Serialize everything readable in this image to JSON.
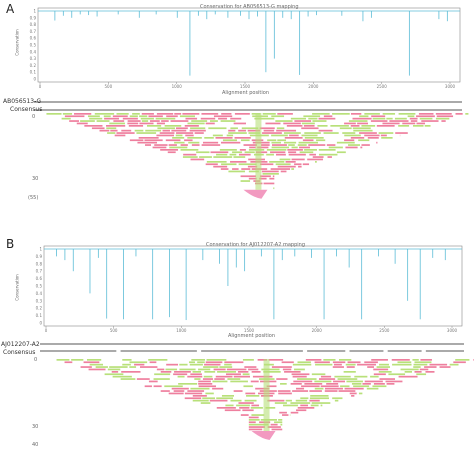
{
  "panels": [
    {
      "letter": "A",
      "title": "Conservation for AB056513-G mapping",
      "y_axis_label": "Conservation",
      "y_ticks": [
        "1",
        "0.9",
        "0.8",
        "0.7",
        "0.6",
        "0.5",
        "0.4",
        "0.3",
        "0.2",
        "0.1",
        "0"
      ],
      "x_ticks": [
        "0",
        "500",
        "1000",
        "1500",
        "2000",
        "2500",
        "3000"
      ],
      "x_axis_label": "Alignment position",
      "reference_name": "AB056513-G",
      "consensus_label": "Consensus",
      "coverage_ticks": [
        "0",
        "30",
        "(55)"
      ],
      "dips": [
        [
          0.04,
          0.86
        ],
        [
          0.06,
          0.93
        ],
        [
          0.08,
          0.9
        ],
        [
          0.1,
          0.95
        ],
        [
          0.12,
          0.94
        ],
        [
          0.14,
          0.92
        ],
        [
          0.19,
          0.95
        ],
        [
          0.24,
          0.9
        ],
        [
          0.28,
          0.95
        ],
        [
          0.33,
          0.9
        ],
        [
          0.36,
          0.05
        ],
        [
          0.38,
          0.93
        ],
        [
          0.4,
          0.88
        ],
        [
          0.42,
          0.95
        ],
        [
          0.45,
          0.9
        ],
        [
          0.48,
          0.93
        ],
        [
          0.5,
          0.88
        ],
        [
          0.52,
          0.92
        ],
        [
          0.54,
          0.1
        ],
        [
          0.56,
          0.3
        ],
        [
          0.58,
          0.9
        ],
        [
          0.6,
          0.88
        ],
        [
          0.62,
          0.06
        ],
        [
          0.64,
          0.92
        ],
        [
          0.66,
          0.94
        ],
        [
          0.72,
          0.93
        ],
        [
          0.77,
          0.85
        ],
        [
          0.79,
          0.9
        ],
        [
          0.88,
          0.05
        ],
        [
          0.95,
          0.88
        ],
        [
          0.97,
          0.85
        ]
      ],
      "colors": {
        "line": "#5bbcd6",
        "forward": "#ee7f9e",
        "reverse": "#b8e07a",
        "tail": "#f29ac0"
      }
    },
    {
      "letter": "B",
      "title": "Conservation for AJ012207-A2 mapping",
      "y_axis_label": "Conservation",
      "y_ticks": [
        "1",
        "0.9",
        "0.8",
        "0.7",
        "0.6",
        "0.5",
        "0.4",
        "0.3",
        "0.2",
        "0.1",
        "0"
      ],
      "x_ticks": [
        "0",
        "500",
        "1000",
        "1500",
        "2000",
        "2500",
        "3000"
      ],
      "x_axis_label": "Alignment position",
      "reference_name": "AJ012207-A2",
      "consensus_label": "Consensus",
      "coverage_ticks": [
        "0",
        "30",
        "40"
      ],
      "dips": [
        [
          0.03,
          0.9
        ],
        [
          0.05,
          0.85
        ],
        [
          0.07,
          0.7
        ],
        [
          0.11,
          0.4
        ],
        [
          0.13,
          0.88
        ],
        [
          0.15,
          0.06
        ],
        [
          0.19,
          0.05
        ],
        [
          0.22,
          0.9
        ],
        [
          0.26,
          0.05
        ],
        [
          0.3,
          0.08
        ],
        [
          0.34,
          0.04
        ],
        [
          0.38,
          0.85
        ],
        [
          0.42,
          0.8
        ],
        [
          0.44,
          0.5
        ],
        [
          0.46,
          0.75
        ],
        [
          0.48,
          0.7
        ],
        [
          0.52,
          0.9
        ],
        [
          0.55,
          0.05
        ],
        [
          0.57,
          0.85
        ],
        [
          0.6,
          0.9
        ],
        [
          0.64,
          0.88
        ],
        [
          0.67,
          0.05
        ],
        [
          0.7,
          0.9
        ],
        [
          0.73,
          0.75
        ],
        [
          0.76,
          0.05
        ],
        [
          0.8,
          0.9
        ],
        [
          0.84,
          0.8
        ],
        [
          0.87,
          0.3
        ],
        [
          0.9,
          0.05
        ],
        [
          0.93,
          0.88
        ],
        [
          0.96,
          0.85
        ]
      ],
      "colors": {
        "line": "#5bbcd6",
        "forward": "#ee7f9e",
        "reverse": "#b8e07a",
        "tail": "#f29ac0"
      }
    }
  ]
}
